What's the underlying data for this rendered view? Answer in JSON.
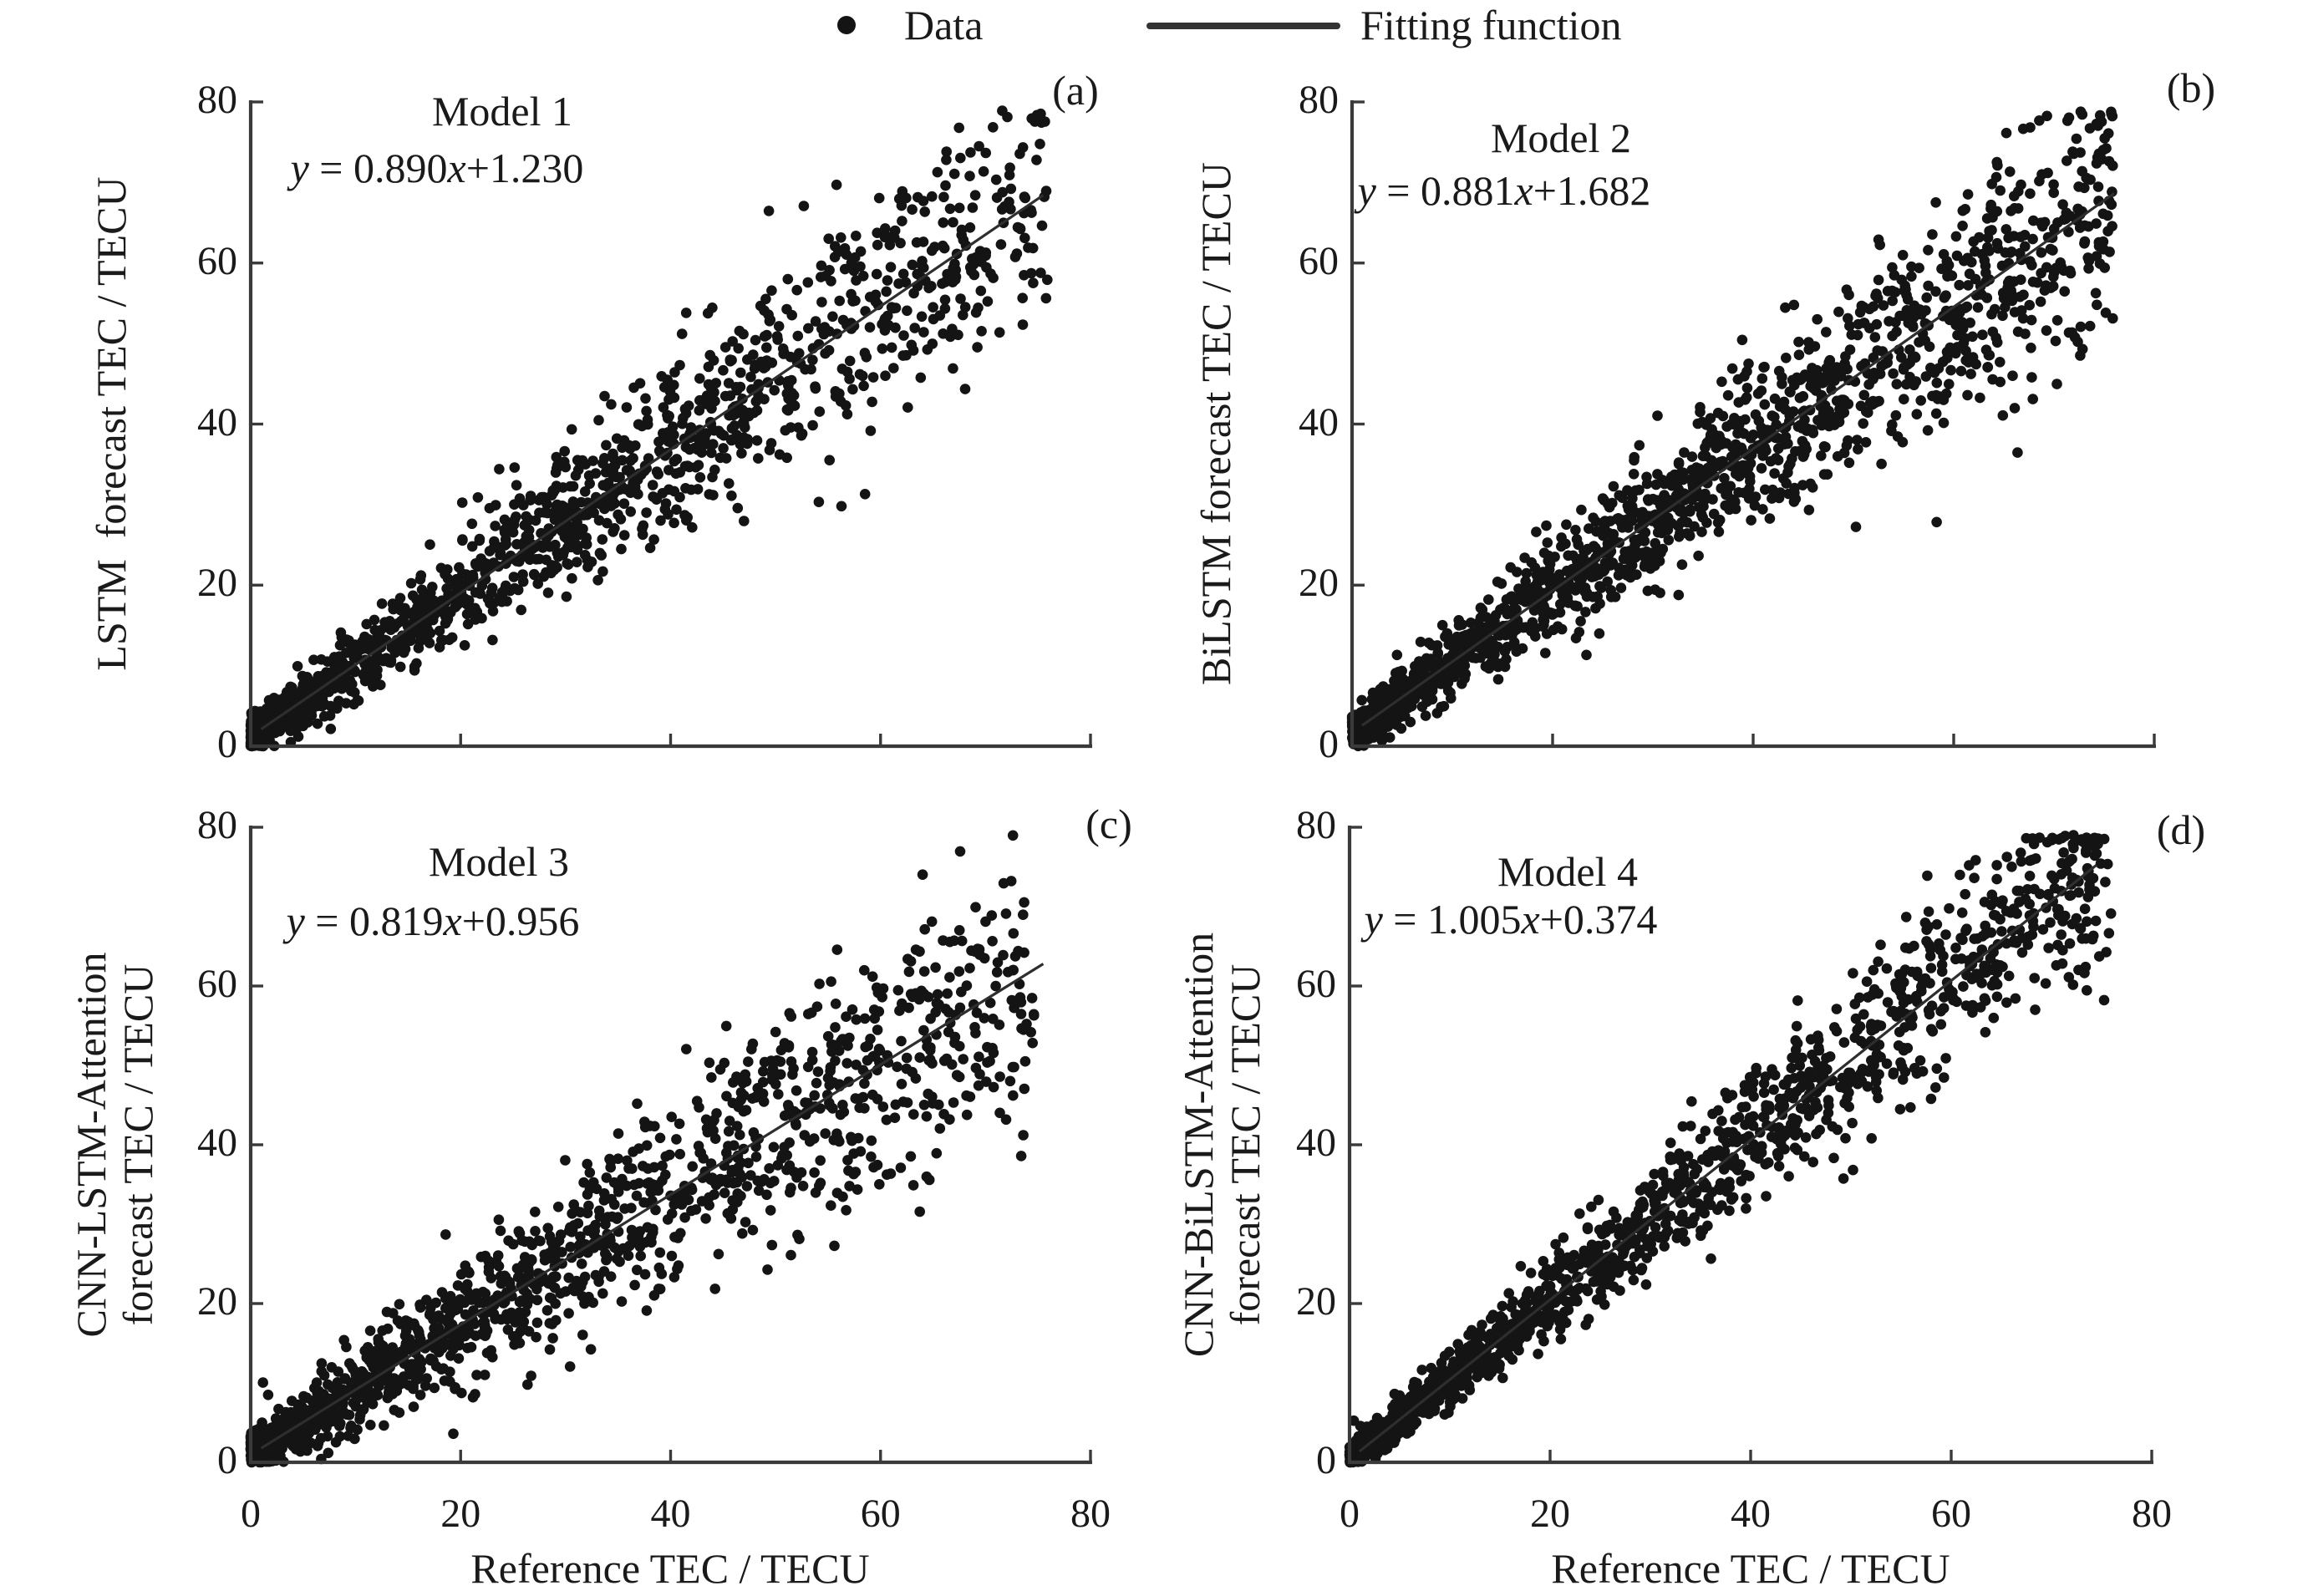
{
  "figure": {
    "legend": {
      "data_label": "Data",
      "fit_label": "Fitting function"
    },
    "x_axis_label": "Reference TEC / TECU",
    "colors": {
      "background": "#ffffff",
      "dot": "#141414",
      "fit_line": "#2e2e2e",
      "spine": "#3a3a3a",
      "text": "#1a1a1a"
    }
  },
  "chart_data": [
    {
      "panel": "a",
      "type": "scatter",
      "corner_label": "(a)",
      "title": "Model 1",
      "equation_text": "y = 0.890x+1.230",
      "equation_parts": {
        "lhs": "y",
        "mid": " = 0.890",
        "var": "x",
        "tail": "+1.230"
      },
      "y_axis_label_lines": [
        "LSTM  forecast TEC / TECU"
      ],
      "show_x_tick_labels": false,
      "x_ticks": [
        0,
        20,
        40,
        60,
        80
      ],
      "y_ticks": [
        0,
        20,
        40,
        60,
        80
      ],
      "x_range": [
        0,
        80
      ],
      "y_range": [
        0,
        80
      ],
      "fit": {
        "slope": 0.89,
        "intercept": 1.23,
        "x_start": 1,
        "x_end": 75.5
      },
      "scatter_model": {
        "n": 1450,
        "seed": 7,
        "power": 1.5,
        "x_max": 76,
        "noise_base": 1.1,
        "noise_per_x": 0.1,
        "description": "Dense diagonal cloud of ~1450 points along y=0.890x+1.230, spread growing with x (values procedurally approximated from the screenshot)"
      }
    },
    {
      "panel": "b",
      "type": "scatter",
      "corner_label": "(b)",
      "title": "Model 2",
      "equation_text": "y = 0.881x+1.682",
      "equation_parts": {
        "lhs": "y",
        "mid": " = 0.881",
        "var": "x",
        "tail": "+1.682"
      },
      "y_axis_label_lines": [
        "BiLSTM forecast TEC / TECU"
      ],
      "show_x_tick_labels": false,
      "x_ticks": [
        0,
        20,
        40,
        60,
        80
      ],
      "y_ticks": [
        0,
        20,
        40,
        60,
        80
      ],
      "x_range": [
        0,
        80
      ],
      "y_range": [
        0,
        80
      ],
      "fit": {
        "slope": 0.881,
        "intercept": 1.682,
        "x_start": 1,
        "x_end": 76
      },
      "scatter_model": {
        "n": 1600,
        "seed": 13,
        "power": 1.32,
        "x_max": 76,
        "noise_base": 1.1,
        "noise_per_x": 0.1,
        "description": "Dense diagonal cloud of ~1600 points along y=0.881x+1.682, spread growing with x (values procedurally approximated from the screenshot)"
      }
    },
    {
      "panel": "c",
      "type": "scatter",
      "corner_label": "(c)",
      "title": "Model 3",
      "equation_text": "y = 0.819x+0.956",
      "equation_parts": {
        "lhs": "y",
        "mid": " = 0.819",
        "var": "x",
        "tail": "+0.956"
      },
      "y_axis_label_lines": [
        "CNN-LSTM-Attention",
        "forecast TEC / TECU"
      ],
      "x_axis_label": "Reference TEC / TECU",
      "show_x_tick_labels": true,
      "x_ticks": [
        0,
        20,
        40,
        60,
        80
      ],
      "y_ticks": [
        0,
        20,
        40,
        60,
        80
      ],
      "x_range": [
        0,
        80
      ],
      "y_range": [
        0,
        80
      ],
      "fit": {
        "slope": 0.819,
        "intercept": 0.956,
        "x_start": 1,
        "x_end": 75.5
      },
      "scatter_model": {
        "n": 1450,
        "seed": 21,
        "power": 1.5,
        "x_max": 75,
        "noise_base": 1.3,
        "noise_per_x": 0.115,
        "description": "Wider diagonal cloud of ~1450 points along y=0.819x+0.956 with high-end outliers near y≈78 (values procedurally approximated from the screenshot)"
      }
    },
    {
      "panel": "d",
      "type": "scatter",
      "corner_label": "(d)",
      "title": "Model 4",
      "equation_text": "y = 1.005x+0.374",
      "equation_parts": {
        "lhs": "y",
        "mid": " = 1.005",
        "var": "x",
        "tail": "+0.374"
      },
      "y_axis_label_lines": [
        "CNN-BiLSTM-Attention",
        "forecast TEC / TECU"
      ],
      "x_axis_label": "Reference TEC / TECU",
      "show_x_tick_labels": true,
      "x_ticks": [
        0,
        20,
        40,
        60,
        80
      ],
      "y_ticks": [
        0,
        20,
        40,
        60,
        80
      ],
      "x_range": [
        0,
        80
      ],
      "y_range": [
        0,
        80
      ],
      "fit": {
        "slope": 1.005,
        "intercept": 0.374,
        "x_start": 1,
        "x_end": 74.5
      },
      "scatter_model": {
        "n": 1450,
        "seed": 42,
        "power": 1.4,
        "x_max": 76,
        "noise_base": 1.0,
        "noise_per_x": 0.078,
        "description": "Tighter diagonal cloud of ~1450 points along y=1.005x+0.374 (values procedurally approximated from the screenshot)"
      }
    }
  ]
}
